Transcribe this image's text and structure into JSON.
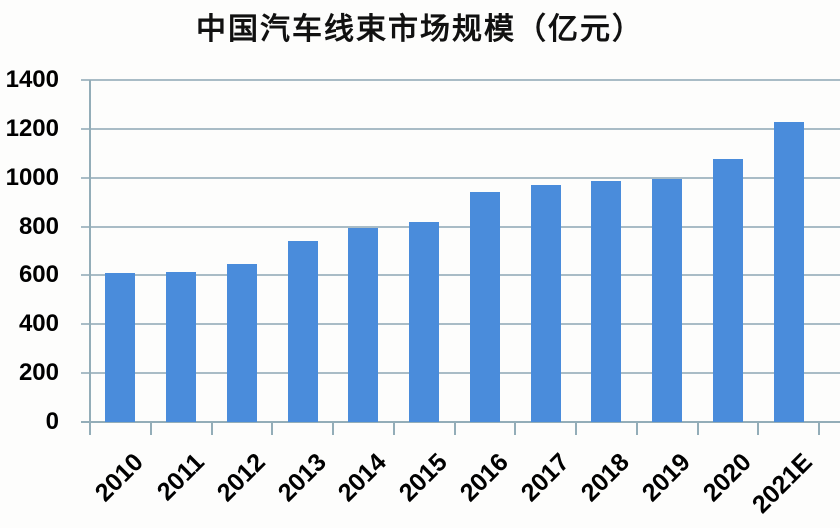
{
  "chart_data": {
    "type": "bar",
    "title": "中国汽车线束市场规模（亿元）",
    "categories": [
      "2010",
      "2011",
      "2012",
      "2013",
      "2014",
      "2015",
      "2016",
      "2017",
      "2018",
      "2019",
      "2020",
      "2021E"
    ],
    "values": [
      610,
      613,
      645,
      740,
      795,
      820,
      940,
      970,
      985,
      995,
      1075,
      1228
    ],
    "xlabel": "",
    "ylabel": "",
    "ylim": [
      0,
      1400
    ],
    "ytick_step": 200,
    "yticks": [
      0,
      200,
      400,
      600,
      800,
      1000,
      1200,
      1400
    ],
    "grid": true,
    "legend_position": "none",
    "bar_color": "#4a8cdb",
    "gridline_color": "#a9bcc6",
    "axis_color": "#93adb8",
    "text_color": "#000000",
    "background_color": "#fdfdfc"
  }
}
